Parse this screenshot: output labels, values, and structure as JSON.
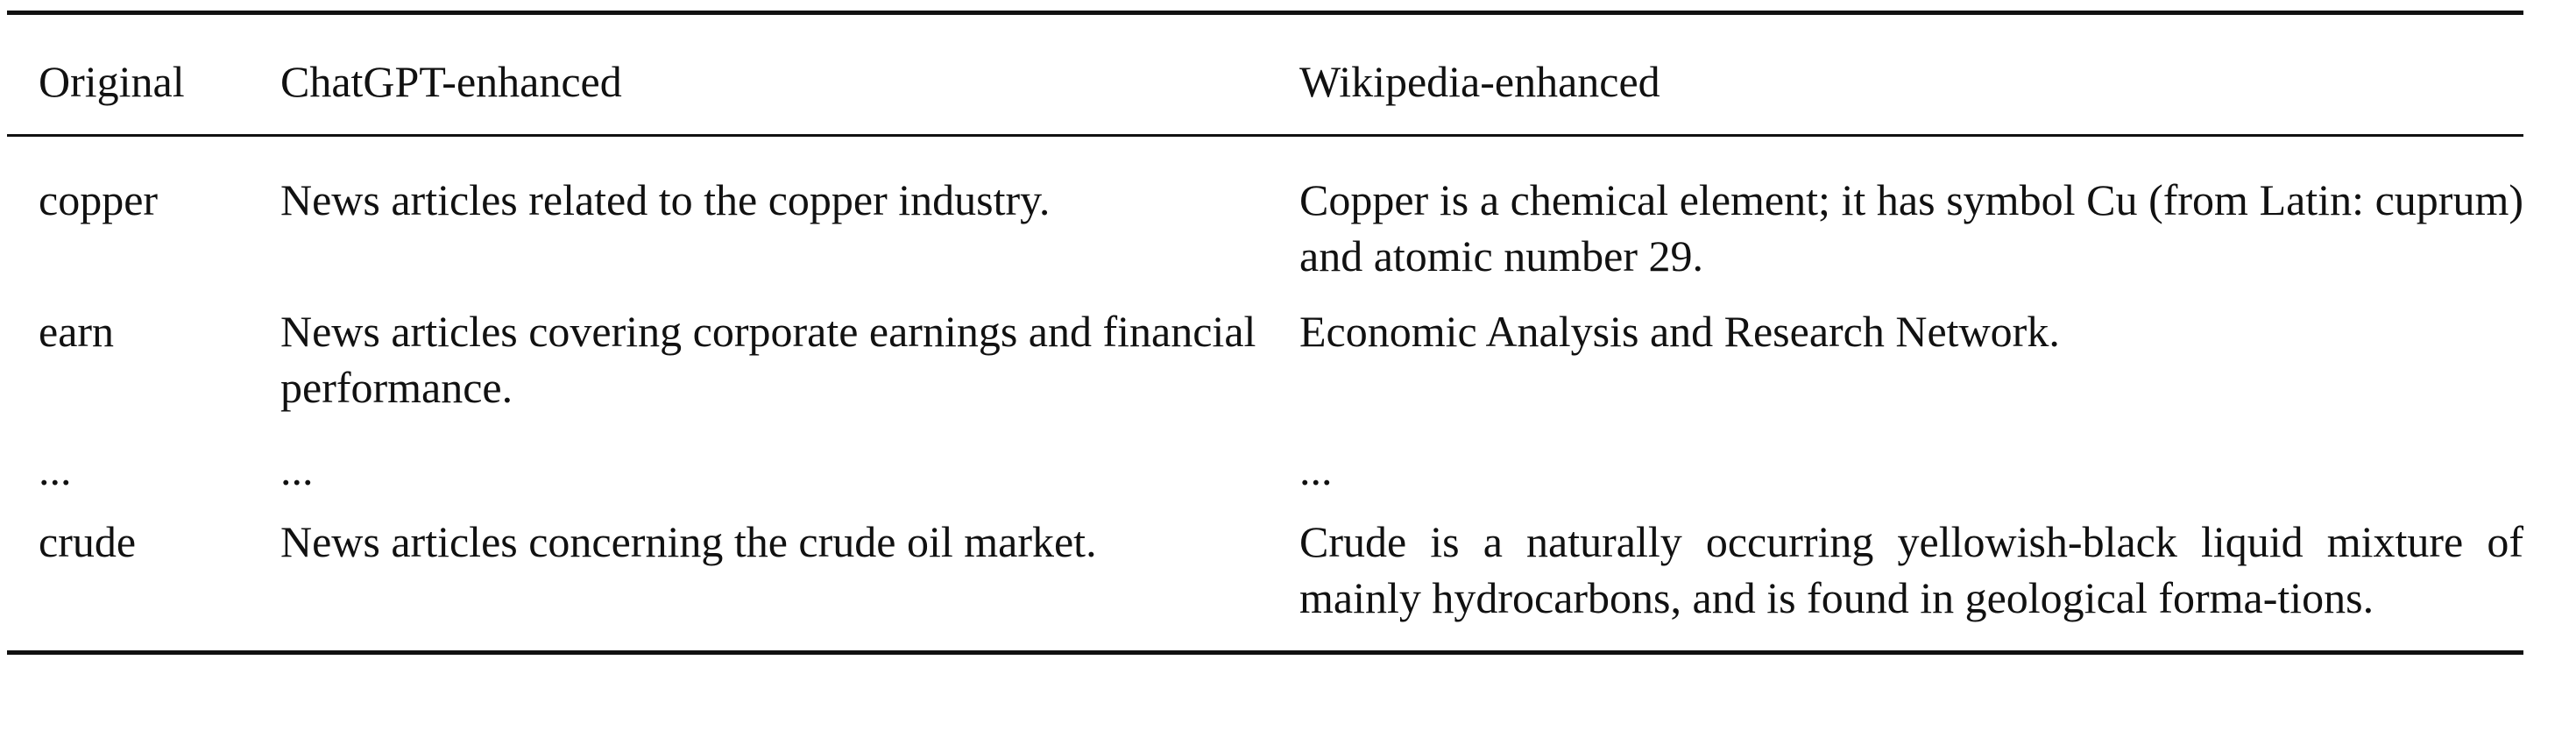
{
  "table": {
    "headers": [
      "Original",
      "ChatGPT-enhanced",
      "Wikipedia-enhanced"
    ],
    "rows": [
      {
        "original": "copper",
        "chatgpt": "News articles related to the copper industry.",
        "wikipedia": "Copper is a chemical element; it has symbol Cu (from Latin: cuprum) and atomic number 29."
      },
      {
        "original": "earn",
        "chatgpt": "News articles covering corporate earnings and financial performance.",
        "wikipedia": "Economic Analysis and Research Network."
      },
      {
        "original": "...",
        "chatgpt": "...",
        "wikipedia": "..."
      },
      {
        "original": "crude",
        "chatgpt": "News articles concerning the crude oil market.",
        "wikipedia": "Crude is a naturally occurring yellowish-black liquid mixture of mainly hydrocarbons, and is found in geological forma-tions."
      }
    ]
  }
}
